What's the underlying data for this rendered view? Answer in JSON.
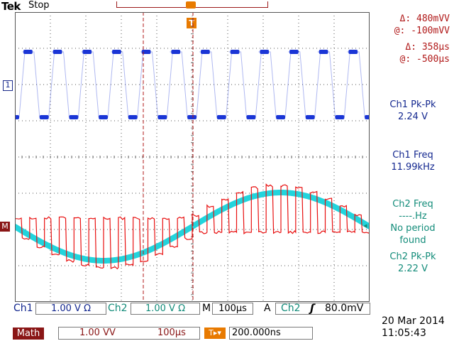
{
  "header": {
    "brand": "Tek",
    "status": "Stop",
    "trigger_marker": "T"
  },
  "cursor_readouts": {
    "volt_delta": "Δ:  480mVV",
    "volt_at": "@: -100mVV",
    "time_delta": "Δ:   358µs",
    "time_at": "@:  -500µs"
  },
  "measurements": {
    "ch1_pkpk_label": "Ch1 Pk-Pk",
    "ch1_pkpk_value": "2.24 V",
    "ch1_freq_label": "Ch1 Freq",
    "ch1_freq_value": "11.99kHz",
    "ch2_freq_label": "Ch2 Freq",
    "ch2_freq_value": "----.Hz",
    "ch2_freq_note1": "No period",
    "ch2_freq_note2": "found",
    "ch2_pkpk_label": "Ch2 Pk-Pk",
    "ch2_pkpk_value": "2.22 V"
  },
  "markers": {
    "ch1": "1",
    "math": "M"
  },
  "bottom_bar": {
    "ch1_label": "Ch1",
    "ch1_scale": "1.00 V Ω",
    "ch2_label": "Ch2",
    "ch2_scale": "1.00 V Ω",
    "horiz_label": "M",
    "horiz_scale": "100µs",
    "acq_label": "A",
    "trig_source": "Ch2",
    "trig_slope": "ʃ",
    "trig_level": "80.0mV"
  },
  "math_bar": {
    "tag": "Math",
    "scale": "1.00 VV",
    "time": "100µs",
    "trig_pos": "200.000ns"
  },
  "datetime": {
    "date": "20 Mar 2014",
    "time": "11:05:43"
  },
  "colors": {
    "ch1": "#1a35d6",
    "ch2": "#22d4dc",
    "math": "#e81010",
    "cursor": "#b01818"
  }
}
